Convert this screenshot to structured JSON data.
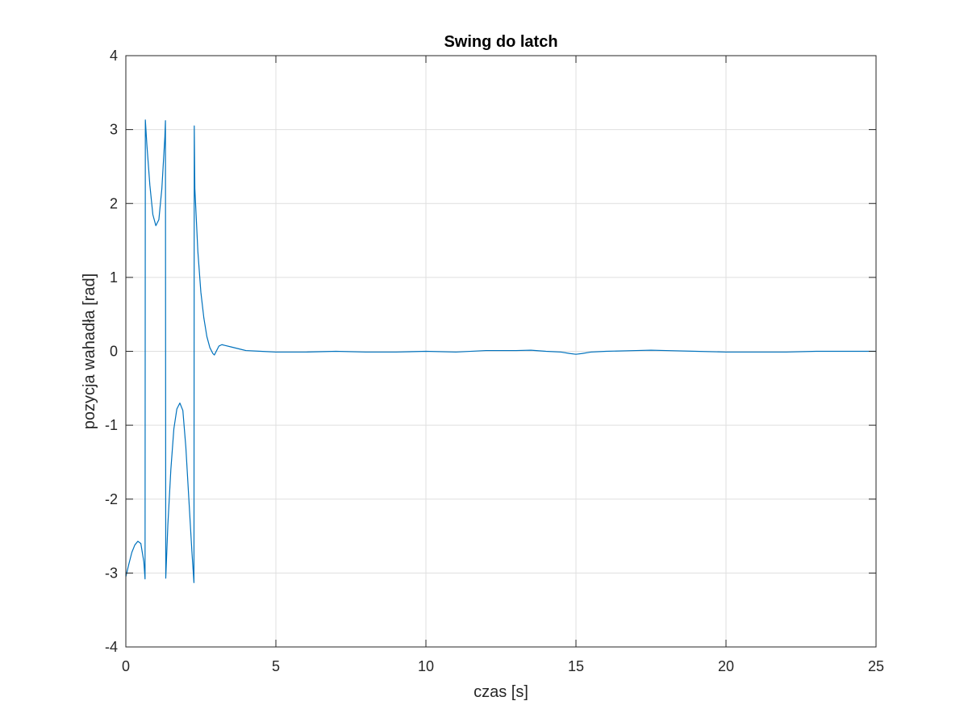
{
  "chart_data": {
    "type": "line",
    "title": "Swing do latch",
    "xlabel": "czas [s]",
    "ylabel": "pozycja wahadła [rad]",
    "xlim": [
      0,
      25
    ],
    "ylim": [
      -4,
      4
    ],
    "xticks": [
      0,
      5,
      10,
      15,
      20,
      25
    ],
    "yticks": [
      -4,
      -3,
      -2,
      -1,
      0,
      1,
      2,
      3,
      4
    ],
    "grid": true,
    "legend": "none",
    "series": [
      {
        "color": "#0072BD",
        "x": [
          0,
          0.1,
          0.2,
          0.3,
          0.4,
          0.5,
          0.6,
          0.64,
          0.65,
          0.7,
          0.8,
          0.9,
          1.0,
          1.1,
          1.2,
          1.3,
          1.32,
          1.33,
          1.4,
          1.5,
          1.6,
          1.7,
          1.8,
          1.9,
          2.0,
          2.1,
          2.2,
          2.27,
          2.28,
          2.3,
          2.4,
          2.5,
          2.6,
          2.7,
          2.8,
          2.9,
          2.95,
          3.0,
          3.1,
          3.2,
          3.3,
          3.5,
          3.8,
          4.0,
          4.5,
          5.0,
          6.0,
          7.0,
          8.0,
          9.0,
          10.0,
          11.0,
          12.0,
          13.0,
          13.5,
          14.0,
          14.5,
          14.8,
          15.0,
          15.2,
          15.5,
          16.0,
          17.0,
          17.5,
          18.0,
          19.0,
          20.0,
          21.0,
          22.0,
          23.0,
          24.0,
          25.0
        ],
        "y": [
          -3.05,
          -2.88,
          -2.72,
          -2.62,
          -2.57,
          -2.6,
          -2.85,
          -3.08,
          3.13,
          2.8,
          2.25,
          1.85,
          1.7,
          1.78,
          2.2,
          2.9,
          3.12,
          -3.07,
          -2.35,
          -1.6,
          -1.05,
          -0.78,
          -0.7,
          -0.8,
          -1.3,
          -2.0,
          -2.7,
          -3.13,
          3.05,
          2.2,
          1.35,
          0.8,
          0.45,
          0.2,
          0.05,
          -0.03,
          -0.05,
          -0.01,
          0.07,
          0.09,
          0.08,
          0.06,
          0.03,
          0.01,
          0.0,
          -0.01,
          -0.01,
          0.0,
          -0.01,
          -0.01,
          0.0,
          -0.01,
          0.01,
          0.01,
          0.015,
          0.0,
          -0.01,
          -0.03,
          -0.04,
          -0.03,
          -0.01,
          0.0,
          0.01,
          0.015,
          0.01,
          0.0,
          -0.01,
          -0.01,
          -0.01,
          0.0,
          0.0,
          0.0
        ]
      }
    ]
  }
}
